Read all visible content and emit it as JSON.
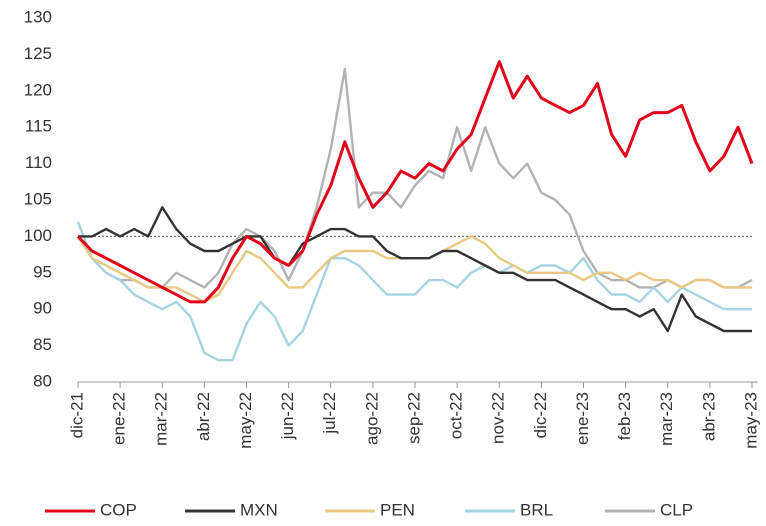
{
  "chart_data": {
    "type": "line",
    "categories": [
      "dic-21",
      null,
      null,
      "ene-22",
      null,
      null,
      "mar-22",
      null,
      null,
      "abr-22",
      null,
      null,
      "may-22",
      null,
      null,
      "jun-22",
      null,
      null,
      "jul-22",
      null,
      null,
      "ago-22",
      null,
      null,
      "sep-22",
      null,
      null,
      "oct-22",
      null,
      null,
      "nov-22",
      null,
      null,
      "dic-22",
      null,
      null,
      "ene-23",
      null,
      null,
      "feb-23",
      null,
      null,
      "mar-23",
      null,
      null,
      "abr-23",
      null,
      null,
      "may-23"
    ],
    "series": [
      {
        "name": "COP",
        "color": "#e3001b",
        "values": [
          100,
          98,
          97,
          96,
          95,
          94,
          93,
          92,
          91,
          91,
          93,
          97,
          100,
          99,
          97,
          96,
          98,
          103,
          107,
          113,
          108,
          104,
          106,
          109,
          108,
          110,
          109,
          112,
          114,
          119,
          124,
          119,
          122,
          119,
          118,
          117,
          118,
          121,
          114,
          111,
          116,
          117,
          117,
          118,
          113,
          109,
          111,
          115,
          110
        ]
      },
      {
        "name": "MXN",
        "color": "#333333",
        "values": [
          100,
          100,
          101,
          100,
          101,
          100,
          104,
          101,
          99,
          98,
          98,
          99,
          100,
          100,
          97,
          96,
          99,
          100,
          101,
          101,
          100,
          100,
          98,
          97,
          97,
          97,
          98,
          98,
          97,
          96,
          95,
          95,
          94,
          94,
          94,
          93,
          92,
          91,
          90,
          90,
          89,
          90,
          87,
          92,
          89,
          88,
          87,
          87,
          87
        ]
      },
      {
        "name": "PEN",
        "color": "#e8c981",
        "values": [
          100,
          97,
          96,
          95,
          94,
          93,
          93,
          93,
          92,
          91,
          92,
          95,
          98,
          97,
          95,
          93,
          93,
          95,
          97,
          98,
          98,
          98,
          97,
          97,
          97,
          97,
          98,
          99,
          100,
          99,
          97,
          96,
          95,
          95,
          95,
          95,
          94,
          95,
          95,
          94,
          95,
          94,
          94,
          93,
          94,
          94,
          93,
          93,
          93
        ]
      },
      {
        "name": "BRL",
        "color": "#a7d3e3",
        "values": [
          102,
          97,
          95,
          94,
          92,
          91,
          90,
          91,
          89,
          84,
          83,
          83,
          88,
          91,
          89,
          85,
          87,
          92,
          97,
          97,
          96,
          94,
          92,
          92,
          92,
          94,
          94,
          93,
          95,
          96,
          95,
          96,
          95,
          96,
          96,
          95,
          97,
          94,
          92,
          92,
          91,
          93,
          91,
          93,
          92,
          91,
          90,
          90,
          90
        ]
      },
      {
        "name": "CLP",
        "color": "#b3b3b3",
        "values": [
          100,
          97,
          95,
          94,
          94,
          93,
          93,
          95,
          94,
          93,
          95,
          99,
          101,
          100,
          98,
          94,
          98,
          104,
          112,
          123,
          104,
          106,
          106,
          104,
          107,
          109,
          108,
          115,
          109,
          115,
          110,
          108,
          110,
          106,
          105,
          103,
          98,
          95,
          94,
          94,
          93,
          93,
          94,
          93,
          94,
          94,
          93,
          93,
          94
        ]
      }
    ],
    "ylim": [
      80,
      130
    ],
    "yticks": [
      80,
      85,
      90,
      95,
      100,
      105,
      110,
      115,
      120,
      125,
      130
    ],
    "reference_line": 100,
    "grid": false
  }
}
